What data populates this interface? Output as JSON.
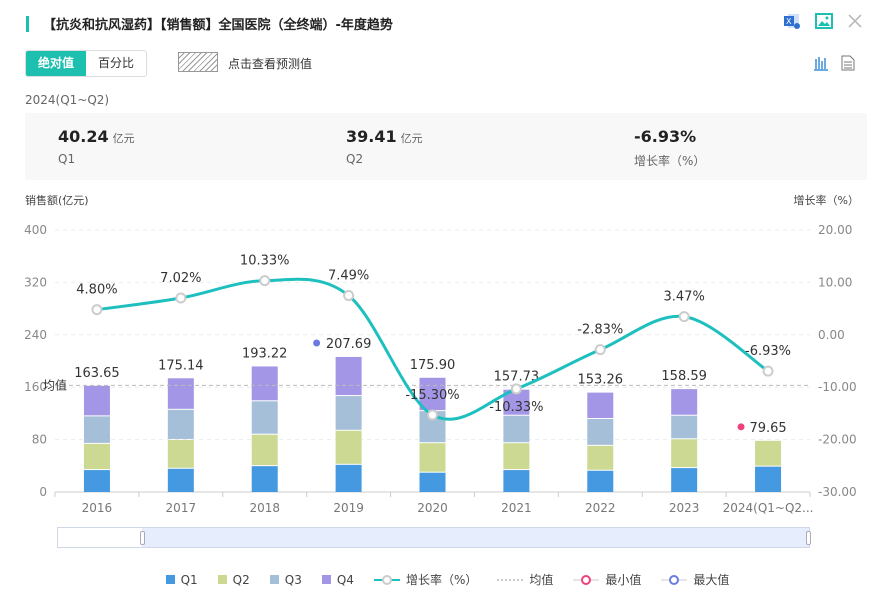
{
  "header": {
    "title": "【抗炎和抗风湿药】【销售额】全国医院（全终端）-年度趋势",
    "icons": [
      "excel-export-icon",
      "image-export-icon",
      "close-icon"
    ]
  },
  "toolbar": {
    "tabs": [
      "绝对值",
      "百分比"
    ],
    "active_tab": "绝对值",
    "predict_label": "点击查看预测值",
    "icons": [
      "bar-chart-icon",
      "document-icon"
    ]
  },
  "summary": {
    "period": "2024(Q1~Q2)",
    "items": [
      {
        "value": "40.24",
        "unit": "亿元",
        "label": "Q1"
      },
      {
        "value": "39.41",
        "unit": "亿元",
        "label": "Q2"
      },
      {
        "value": "-6.93%",
        "unit": "",
        "label": "增长率（%）"
      }
    ]
  },
  "colors": {
    "accent": "#1dbfae",
    "Q1": "#4599e0",
    "Q2": "#cbd993",
    "Q3": "#a6bfd8",
    "Q4": "#a496e6",
    "line": "#1dbfbf",
    "min": "#f0407a",
    "max": "#6b7ce0"
  },
  "chart_data": {
    "type": "bar+line",
    "ylabel_left": "销售额(亿元)",
    "ylabel_right": "增长率（%）",
    "ylim_left": [
      0,
      400
    ],
    "yticks_left": [
      "0",
      "80",
      "160",
      "240",
      "320",
      "400"
    ],
    "ylim_right": [
      -30,
      20
    ],
    "yticks_right": [
      "-30.00",
      "-20.00",
      "-10.00",
      "0.00",
      "10.00",
      "20.00"
    ],
    "categories": [
      "2016",
      "2017",
      "2018",
      "2019",
      "2020",
      "2021",
      "2022",
      "2023",
      "2024(Q1~Q2..."
    ],
    "series": [
      {
        "name": "Q1",
        "values": [
          35,
          37,
          41,
          43,
          31,
          35,
          34,
          38,
          40.24
        ]
      },
      {
        "name": "Q2",
        "values": [
          40,
          44,
          48,
          52,
          45,
          41,
          38,
          44,
          39.41
        ]
      },
      {
        "name": "Q3",
        "values": [
          42,
          46,
          51,
          53,
          49,
          42,
          41,
          36,
          0
        ]
      },
      {
        "name": "Q4",
        "values": [
          46.65,
          48.14,
          53.22,
          59.69,
          50.9,
          39.73,
          40.26,
          40.59,
          0
        ]
      }
    ],
    "totals": [
      "163.65",
      "175.14",
      "193.22",
      "207.69",
      "175.90",
      "157.73",
      "153.26",
      "158.59",
      "79.65"
    ],
    "growth": {
      "name": "增长率（%）",
      "values": [
        4.8,
        7.02,
        10.33,
        7.49,
        -15.3,
        -10.33,
        -2.83,
        3.47,
        -6.93
      ],
      "labels": [
        "4.80%",
        "7.02%",
        "10.33%",
        "7.49%",
        "-15.30%",
        "-10.33%",
        "-2.83%",
        "3.47%",
        "-6.93%"
      ]
    },
    "mean_label": "均值",
    "max_index": 3,
    "min_index": 8,
    "legend": [
      "Q1",
      "Q2",
      "Q3",
      "Q4",
      "增长率（%）",
      "均值",
      "最小值",
      "最大值"
    ],
    "legend_position": "bottom",
    "grid": true
  }
}
